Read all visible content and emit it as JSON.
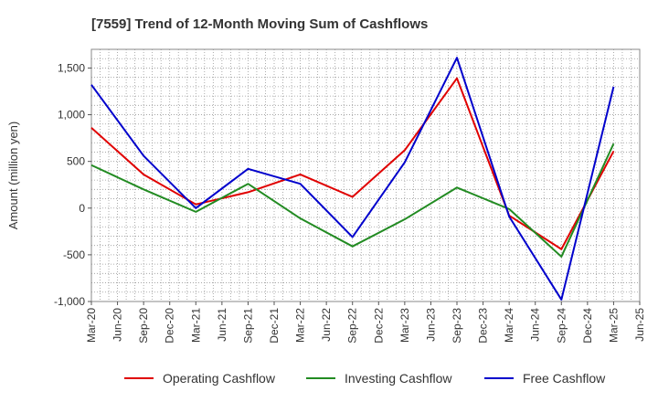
{
  "chart_data": {
    "type": "line",
    "title": "[7559]  Trend of 12-Month Moving Sum of Cashflows",
    "xlabel": "",
    "ylabel": "Amount (million yen)",
    "ylim": [
      -1000,
      1700
    ],
    "yticks": [
      -1000,
      -500,
      0,
      500,
      1000,
      1500
    ],
    "ytick_labels": [
      "-1,000",
      "-500",
      "0",
      "500",
      "1,000",
      "1,500"
    ],
    "x_tick_labels": [
      "Mar-20",
      "Jun-20",
      "Sep-20",
      "Dec-20",
      "Mar-21",
      "Jun-21",
      "Sep-21",
      "Dec-21",
      "Mar-22",
      "Jun-22",
      "Sep-22",
      "Dec-22",
      "Mar-23",
      "Jun-23",
      "Sep-23",
      "Dec-23",
      "Mar-24",
      "Jun-24",
      "Sep-24",
      "Dec-24",
      "Mar-25",
      "Jun-25"
    ],
    "x": [
      "Mar-20",
      "Sep-20",
      "Mar-21",
      "Sep-21",
      "Mar-22",
      "Sep-22",
      "Mar-23",
      "Sep-23",
      "Mar-24",
      "Sep-24",
      "Mar-25"
    ],
    "grid": true,
    "legend": "bottom",
    "series": [
      {
        "name": "Operating Cashflow",
        "color": "#e00000",
        "values": [
          860,
          360,
          40,
          170,
          360,
          120,
          620,
          1390,
          -80,
          -440,
          610
        ]
      },
      {
        "name": "Investing Cashflow",
        "color": "#228b22",
        "values": [
          460,
          200,
          -40,
          260,
          -110,
          -410,
          -120,
          220,
          -10,
          -520,
          690
        ]
      },
      {
        "name": "Free Cashflow",
        "color": "#0000cc",
        "values": [
          1320,
          560,
          0,
          420,
          260,
          -310,
          490,
          1610,
          -90,
          -980,
          1300
        ]
      }
    ]
  }
}
